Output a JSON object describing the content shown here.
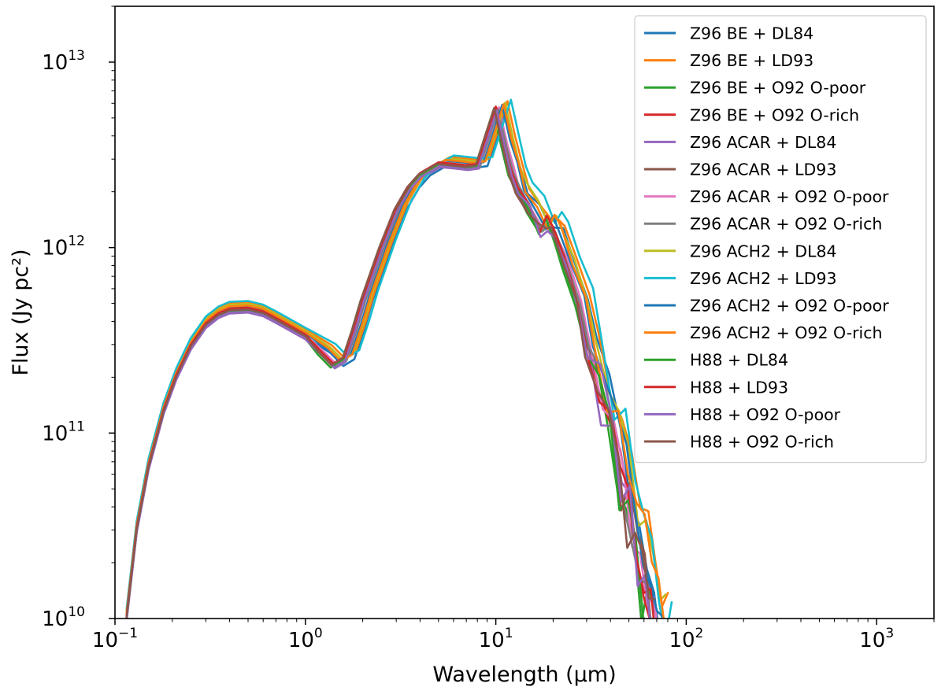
{
  "chart_data": {
    "type": "line",
    "title": "",
    "xlabel": "Wavelength (μm)",
    "ylabel": "Flux (Jy pc²)",
    "xscale": "log",
    "yscale": "log",
    "xlim": [
      0.1,
      2000
    ],
    "ylim": [
      10000000000.0,
      20000000000000.0
    ],
    "legend_position": "top-right",
    "xticks": [
      {
        "value": 0.1,
        "base": "10",
        "exp": "−1"
      },
      {
        "value": 1,
        "base": "10",
        "exp": "0"
      },
      {
        "value": 10,
        "base": "10",
        "exp": "1"
      },
      {
        "value": 100,
        "base": "10",
        "exp": "2"
      },
      {
        "value": 1000,
        "base": "10",
        "exp": "3"
      }
    ],
    "yticks": [
      {
        "value": 10000000000.0,
        "base": "10",
        "exp": "10"
      },
      {
        "value": 100000000000.0,
        "base": "10",
        "exp": "11"
      },
      {
        "value": 1000000000000.0,
        "base": "10",
        "exp": "12"
      },
      {
        "value": 10000000000000.0,
        "base": "10",
        "exp": "13"
      }
    ],
    "base_curve": [
      [
        0.115,
        10000000000.0
      ],
      [
        0.13,
        30000000000.0
      ],
      [
        0.15,
        65000000000.0
      ],
      [
        0.18,
        130000000000.0
      ],
      [
        0.21,
        200000000000.0
      ],
      [
        0.25,
        290000000000.0
      ],
      [
        0.3,
        380000000000.0
      ],
      [
        0.35,
        430000000000.0
      ],
      [
        0.4,
        455000000000.0
      ],
      [
        0.5,
        460000000000.0
      ],
      [
        0.6,
        440000000000.0
      ],
      [
        0.7,
        405000000000.0
      ],
      [
        0.8,
        375000000000.0
      ],
      [
        1.0,
        330000000000.0
      ],
      [
        1.2,
        270000000000.0
      ],
      [
        1.4,
        230000000000.0
      ],
      [
        1.6,
        250000000000.0
      ],
      [
        1.8,
        360000000000.0
      ],
      [
        2.0,
        520000000000.0
      ],
      [
        2.5,
        1000000000000.0
      ],
      [
        3.0,
        1600000000000.0
      ],
      [
        3.5,
        2100000000000.0
      ],
      [
        4.0,
        2450000000000.0
      ],
      [
        5.0,
        2800000000000.0
      ],
      [
        6.0,
        2750000000000.0
      ],
      [
        7.0,
        2700000000000.0
      ],
      [
        8.0,
        2750000000000.0
      ],
      [
        9.0,
        4000000000000.0
      ],
      [
        10.0,
        5600000000000.0
      ],
      [
        11.0,
        3600000000000.0
      ],
      [
        12.0,
        2600000000000.0
      ],
      [
        13.0,
        2000000000000.0
      ],
      [
        15.0,
        1600000000000.0
      ],
      [
        17.0,
        1250000000000.0
      ],
      [
        18.5,
        1350000000000.0
      ],
      [
        20.0,
        1200000000000.0
      ],
      [
        23.0,
        800000000000.0
      ],
      [
        27.0,
        500000000000.0
      ],
      [
        30.0,
        320000000000.0
      ],
      [
        35.0,
        160000000000.0
      ],
      [
        40.0,
        90000000000.0
      ],
      [
        45.0,
        55000000000.0
      ],
      [
        50.0,
        35000000000.0
      ],
      [
        55.0,
        22000000000.0
      ],
      [
        60.0,
        15000000000.0
      ],
      [
        65.0,
        11000000000.0
      ],
      [
        70.0,
        9000000000.0
      ]
    ],
    "series": [
      {
        "name": "Z96 BE + DL84",
        "color": "#1f77b4",
        "x_scale": 1.13,
        "y_scale": 1.0,
        "seed": 1
      },
      {
        "name": "Z96 BE + LD93",
        "color": "#ff7f0e",
        "x_scale": 1.15,
        "y_scale": 1.1,
        "seed": 2
      },
      {
        "name": "Z96 BE + O92 O-poor",
        "color": "#2ca02c",
        "x_scale": 0.97,
        "y_scale": 0.98,
        "seed": 3
      },
      {
        "name": "Z96 BE + O92 O-rich",
        "color": "#d62728",
        "x_scale": 1.0,
        "y_scale": 1.0,
        "seed": 4
      },
      {
        "name": "Z96 ACAR + DL84",
        "color": "#9467bd",
        "x_scale": 1.02,
        "y_scale": 0.97,
        "seed": 5
      },
      {
        "name": "Z96 ACAR + LD93",
        "color": "#8c564b",
        "x_scale": 1.01,
        "y_scale": 1.01,
        "seed": 6
      },
      {
        "name": "Z96 ACAR + O92 O-poor",
        "color": "#e377c2",
        "x_scale": 1.04,
        "y_scale": 1.02,
        "seed": 7
      },
      {
        "name": "Z96 ACAR + O92 O-rich",
        "color": "#7f7f7f",
        "x_scale": 1.03,
        "y_scale": 0.99,
        "seed": 8
      },
      {
        "name": "Z96 ACH2 + DL84",
        "color": "#bcbd22",
        "x_scale": 1.12,
        "y_scale": 1.08,
        "seed": 9
      },
      {
        "name": "Z96 ACH2 + LD93",
        "color": "#17becf",
        "x_scale": 1.2,
        "y_scale": 1.12,
        "seed": 10
      },
      {
        "name": "Z96 ACH2 + O92 O-poor",
        "color": "#1f77b4",
        "x_scale": 1.08,
        "y_scale": 1.05,
        "seed": 11
      },
      {
        "name": "Z96 ACH2 + O92 O-rich",
        "color": "#ff7f0e",
        "x_scale": 1.1,
        "y_scale": 1.06,
        "seed": 12
      },
      {
        "name": "H88 + DL84",
        "color": "#2ca02c",
        "x_scale": 0.99,
        "y_scale": 1.0,
        "seed": 13
      },
      {
        "name": "H88 + LD93",
        "color": "#d62728",
        "x_scale": 1.0,
        "y_scale": 1.03,
        "seed": 14
      },
      {
        "name": "H88 + O92 O-poor",
        "color": "#9467bd",
        "x_scale": 1.01,
        "y_scale": 0.98,
        "seed": 15
      },
      {
        "name": "H88 + O92 O-rich",
        "color": "#8c564b",
        "x_scale": 0.98,
        "y_scale": 1.01,
        "seed": 16
      }
    ]
  }
}
